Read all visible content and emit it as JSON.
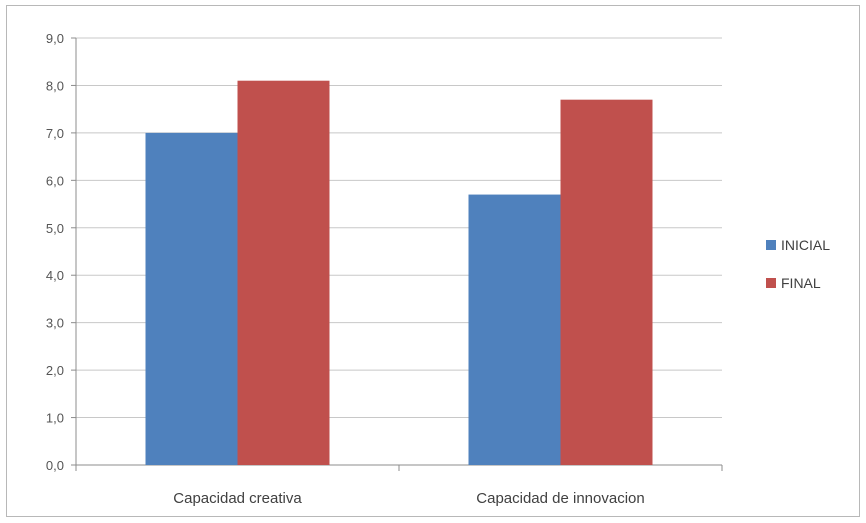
{
  "chart_data": {
    "type": "bar",
    "title": "",
    "xlabel": "",
    "ylabel": "",
    "categories": [
      "Capacidad creativa",
      "Capacidad de innovacion"
    ],
    "series": [
      {
        "name": "INICIAL",
        "values": [
          7.0,
          5.7
        ],
        "color": "#4f81bd"
      },
      {
        "name": "FINAL",
        "values": [
          8.1,
          7.7
        ],
        "color": "#c0504d"
      }
    ],
    "ylim": [
      0,
      9
    ],
    "yticks": [
      "0,0",
      "1,0",
      "2,0",
      "3,0",
      "4,0",
      "5,0",
      "6,0",
      "7,0",
      "8,0",
      "9,0"
    ],
    "grid": true,
    "legend_position": "right"
  }
}
